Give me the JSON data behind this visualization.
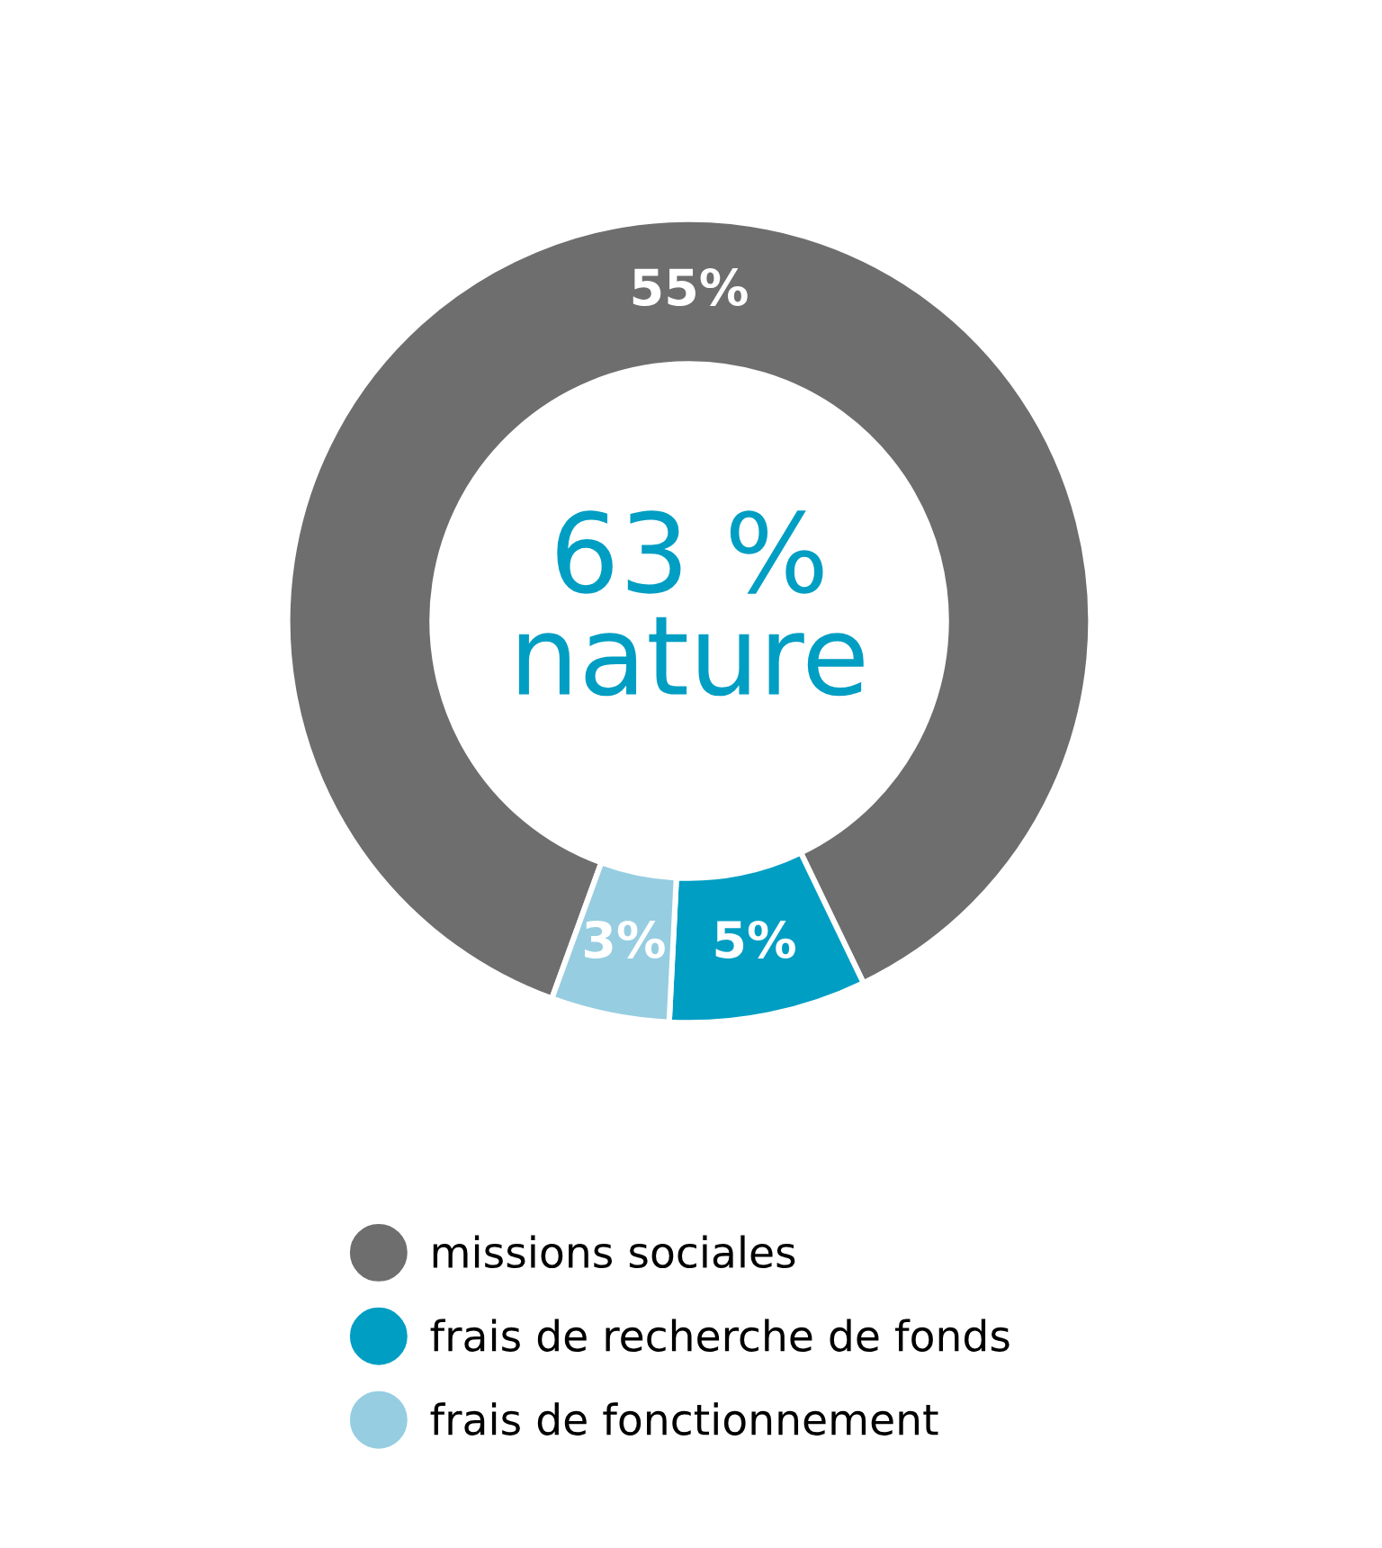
{
  "chart_data": {
    "type": "donut",
    "categories": [
      "missions sociales",
      "frais de recherche de fonds",
      "frais de fonctionnement"
    ],
    "values": [
      55,
      5,
      3
    ],
    "colors": [
      "#6e6e6e",
      "#009ec3",
      "#96cde1"
    ],
    "value_labels": [
      "55%",
      "5%",
      "3%"
    ],
    "annotations": [
      "63 %\nnature"
    ],
    "legend": "bottom"
  }
}
